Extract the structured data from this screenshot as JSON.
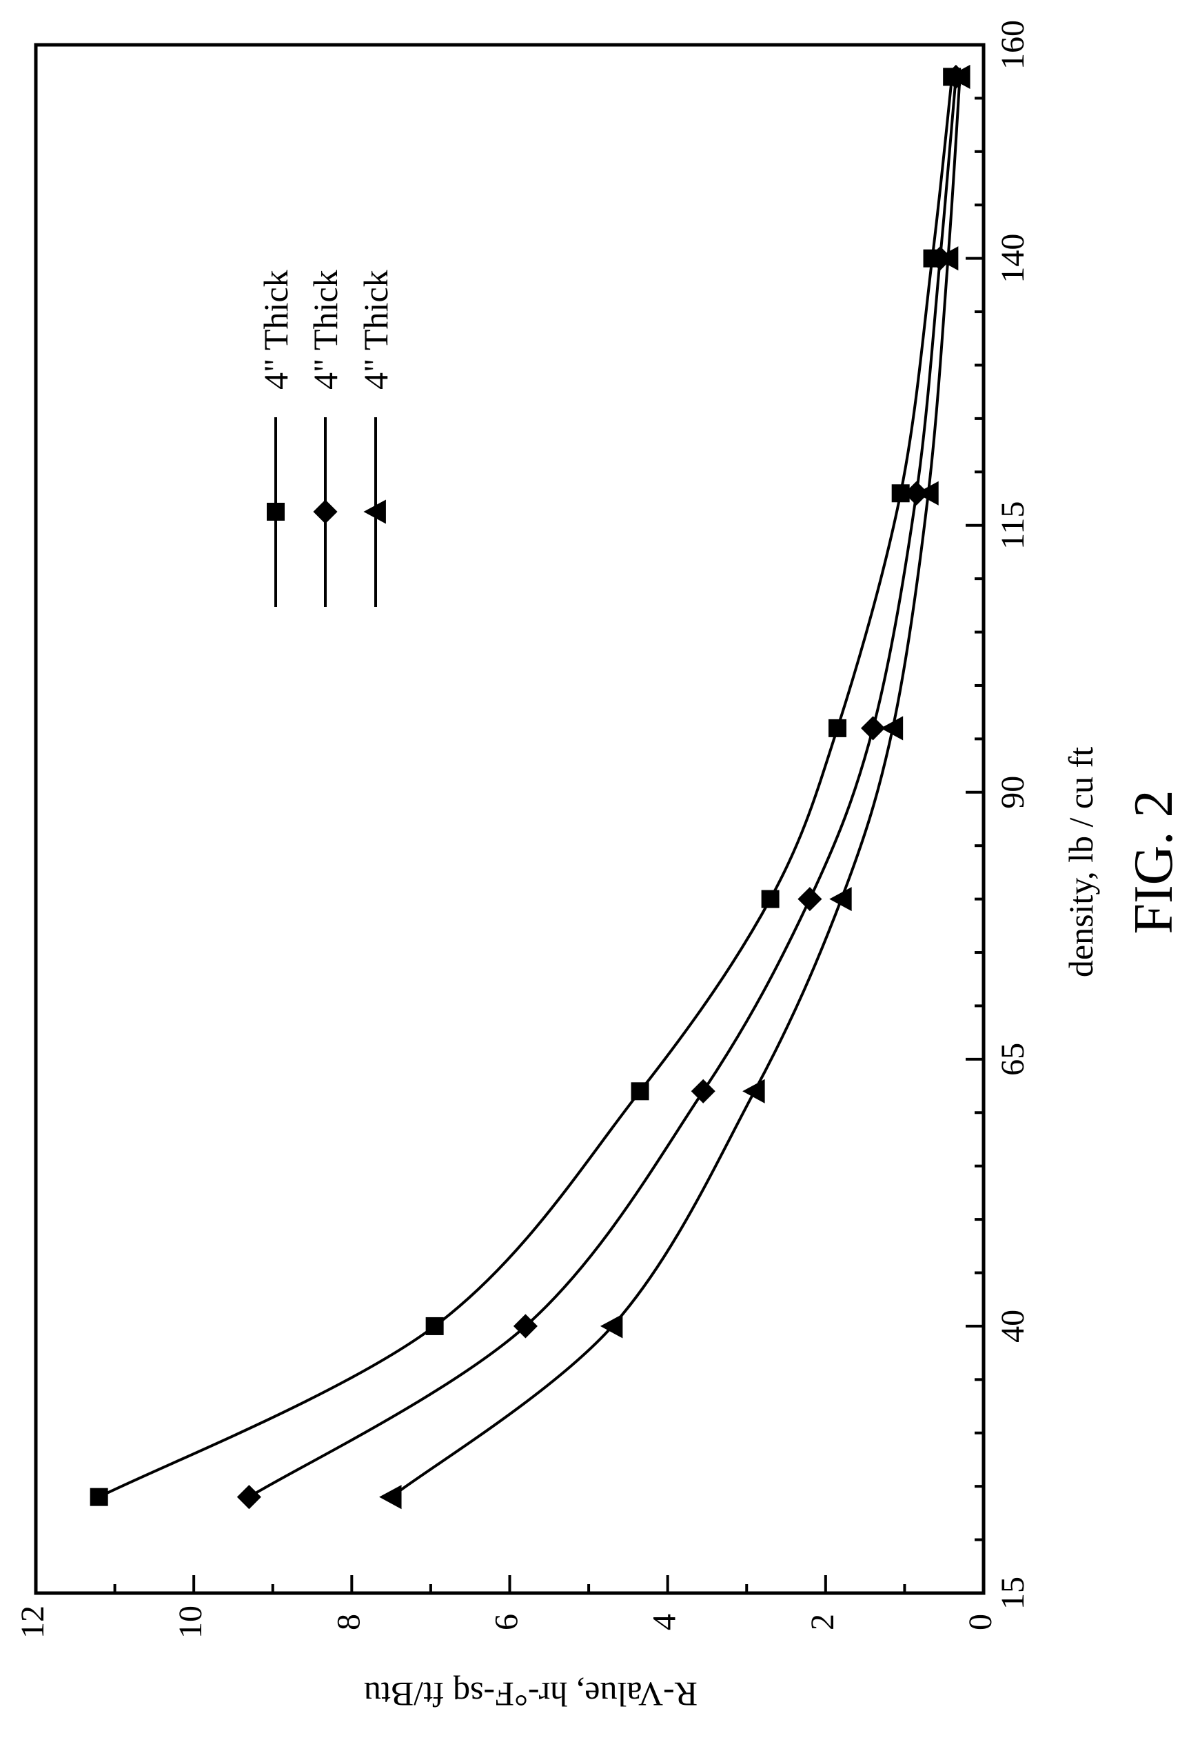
{
  "figure_label": "FIG. 2",
  "chart_data": {
    "type": "line",
    "orientation": "rotated 90° counter-clockwise",
    "xlabel": "density, lb / cu ft",
    "ylabel": "R-Value, hr-°F-sq ft/Btu",
    "xlim": [
      15,
      160
    ],
    "ylim": [
      0,
      12
    ],
    "x_ticks": [
      "15",
      "40",
      "65",
      "90",
      "115",
      "140",
      "160"
    ],
    "y_ticks": [
      "0",
      "2",
      "4",
      "6",
      "8",
      "10",
      "12"
    ],
    "grid": false,
    "legend_position": "top-right",
    "series": [
      {
        "name": "4\" Thick",
        "marker": "square",
        "x": [
          24,
          40,
          62,
          80,
          96,
          118,
          140,
          157
        ],
        "y": [
          11.2,
          6.95,
          4.35,
          2.7,
          1.85,
          1.05,
          0.65,
          0.4
        ]
      },
      {
        "name": "4\" Thick",
        "marker": "diamond",
        "x": [
          24,
          40,
          62,
          80,
          96,
          118,
          140,
          157
        ],
        "y": [
          9.3,
          5.8,
          3.55,
          2.2,
          1.4,
          0.85,
          0.55,
          0.35
        ]
      },
      {
        "name": "4\" Thick",
        "marker": "triangle",
        "x": [
          24,
          40,
          62,
          80,
          96,
          118,
          140,
          157
        ],
        "y": [
          7.5,
          4.7,
          2.9,
          1.8,
          1.15,
          0.7,
          0.45,
          0.3
        ]
      }
    ]
  }
}
